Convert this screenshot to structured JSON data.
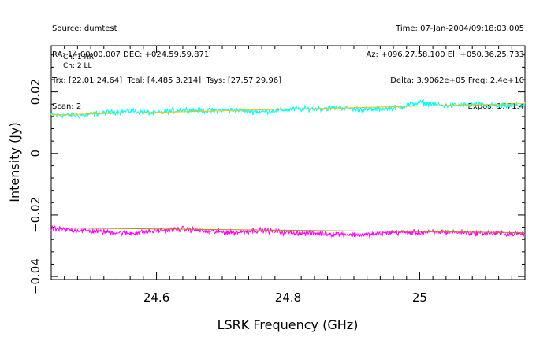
{
  "header": {
    "left_lines": [
      "Source: dumtest",
      "RA: 14:00:00.007 DEC: +024.59.59.871",
      "Trx: [22.01 24.64]  Tcal: [4.485 3.214]  Tsys: [27.57 29.96]",
      "Scan: 2"
    ],
    "right_lines": [
      "Time: 07-Jan-2004/09:18:03.005",
      "Az: +096.27.58.100 El: +050.36.25.733",
      "Delta: 3.9062e+05 Freq: 2.4e+10",
      "Expos: 1771.4"
    ]
  },
  "chart_data": {
    "type": "line",
    "xlabel": "LSRK Frequency (GHz)",
    "ylabel": "Intensity (Jy)",
    "xlim": [
      24.44,
      25.16
    ],
    "ylim": [
      -0.041,
      0.035
    ],
    "x_ticks": [
      {
        "value": 24.6,
        "label": "24.6"
      },
      {
        "value": 24.8,
        "label": "24.8"
      },
      {
        "value": 25.0,
        "label": "25"
      }
    ],
    "y_ticks": [
      {
        "value": -0.04,
        "label": "−0.04"
      },
      {
        "value": -0.02,
        "label": "−0.02"
      },
      {
        "value": 0,
        "label": "0"
      },
      {
        "value": 0.02,
        "label": "0.02"
      }
    ],
    "legend_position": "top-left",
    "series": [
      {
        "name": "Ch: 1 RR",
        "color": "#00ffff",
        "x": [
          24.44,
          24.48,
          24.52,
          24.56,
          24.6,
          24.64,
          24.68,
          24.72,
          24.76,
          24.8,
          24.84,
          24.88,
          24.92,
          24.96,
          25.0,
          25.04,
          25.08,
          25.12,
          25.16
        ],
        "y": [
          0.0125,
          0.0123,
          0.0132,
          0.0138,
          0.013,
          0.0142,
          0.0138,
          0.0141,
          0.0135,
          0.0143,
          0.0145,
          0.0148,
          0.0142,
          0.0147,
          0.0165,
          0.0155,
          0.0158,
          0.0154,
          0.0157
        ],
        "fit": {
          "color": "#ffbf00",
          "start": 0.0125,
          "end": 0.0162
        }
      },
      {
        "name": "Ch: 2 LL",
        "color": "#ff00ff",
        "x": [
          24.44,
          24.48,
          24.52,
          24.56,
          24.6,
          24.64,
          24.68,
          24.72,
          24.76,
          24.8,
          24.84,
          24.88,
          24.92,
          24.96,
          25.0,
          25.04,
          25.08,
          25.12,
          25.16
        ],
        "y": [
          -0.0245,
          -0.025,
          -0.0255,
          -0.026,
          -0.0252,
          -0.0245,
          -0.0255,
          -0.0257,
          -0.025,
          -0.0258,
          -0.026,
          -0.0262,
          -0.0265,
          -0.0257,
          -0.0258,
          -0.0255,
          -0.0258,
          -0.026,
          -0.0262
        ],
        "fit": {
          "color": "#b8860b",
          "start": -0.0242,
          "end": -0.0258
        }
      }
    ]
  }
}
